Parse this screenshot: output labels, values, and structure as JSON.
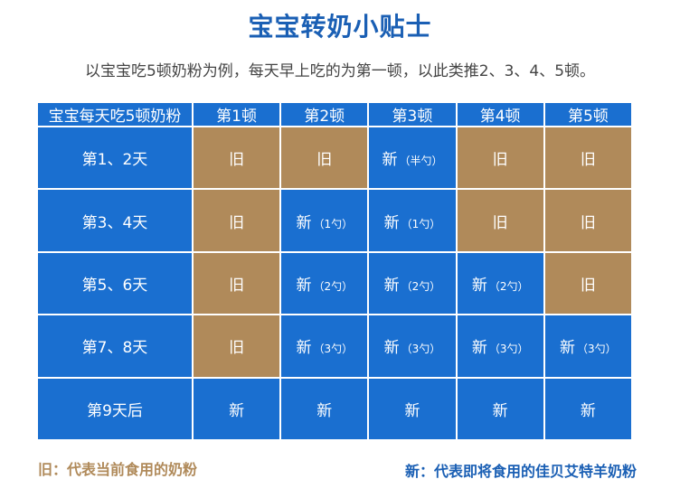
{
  "title": "宝宝转奶小贴士",
  "subtitle": "以宝宝吃5顿奶粉为例，每天早上吃的为第一顿，以此类推2、3、4、5顿。",
  "table": {
    "corner": "宝宝每天吃5顿奶粉",
    "columns": [
      "第1顿",
      "第2顿",
      "第3顿",
      "第4顿",
      "第5顿"
    ],
    "rows": [
      {
        "label": "第1、2天",
        "cells": [
          {
            "main": "旧",
            "note": "",
            "type": "old"
          },
          {
            "main": "旧",
            "note": "",
            "type": "old"
          },
          {
            "main": "新",
            "note": "（半勺）",
            "type": "new"
          },
          {
            "main": "旧",
            "note": "",
            "type": "old"
          },
          {
            "main": "旧",
            "note": "",
            "type": "old"
          }
        ]
      },
      {
        "label": "第3、4天",
        "cells": [
          {
            "main": "旧",
            "note": "",
            "type": "old"
          },
          {
            "main": "新",
            "note": "（1勺）",
            "type": "new"
          },
          {
            "main": "新",
            "note": "（1勺）",
            "type": "new"
          },
          {
            "main": "旧",
            "note": "",
            "type": "old"
          },
          {
            "main": "旧",
            "note": "",
            "type": "old"
          }
        ]
      },
      {
        "label": "第5、6天",
        "cells": [
          {
            "main": "旧",
            "note": "",
            "type": "old"
          },
          {
            "main": "新",
            "note": "（2勺）",
            "type": "new"
          },
          {
            "main": "新",
            "note": "（2勺）",
            "type": "new"
          },
          {
            "main": "新",
            "note": "（2勺）",
            "type": "new"
          },
          {
            "main": "旧",
            "note": "",
            "type": "old"
          }
        ]
      },
      {
        "label": "第7、8天",
        "cells": [
          {
            "main": "旧",
            "note": "",
            "type": "old"
          },
          {
            "main": "新",
            "note": "（3勺）",
            "type": "new"
          },
          {
            "main": "新",
            "note": "（3勺）",
            "type": "new"
          },
          {
            "main": "新",
            "note": "（3勺）",
            "type": "new"
          },
          {
            "main": "新",
            "note": "（3勺）",
            "type": "new"
          }
        ]
      },
      {
        "label": "第9天后",
        "cells": [
          {
            "main": "新",
            "note": "",
            "type": "new"
          },
          {
            "main": "新",
            "note": "",
            "type": "new"
          },
          {
            "main": "新",
            "note": "",
            "type": "new"
          },
          {
            "main": "新",
            "note": "",
            "type": "new"
          },
          {
            "main": "新",
            "note": "",
            "type": "new"
          }
        ]
      }
    ]
  },
  "legend": {
    "old": "旧：代表当前食用的奶粉",
    "new": "新：代表即将食用的佳贝艾特羊奶粉"
  },
  "colors": {
    "blue": "#1a6fd0",
    "tan": "#b08a5a",
    "title": "#1a5fb4"
  }
}
